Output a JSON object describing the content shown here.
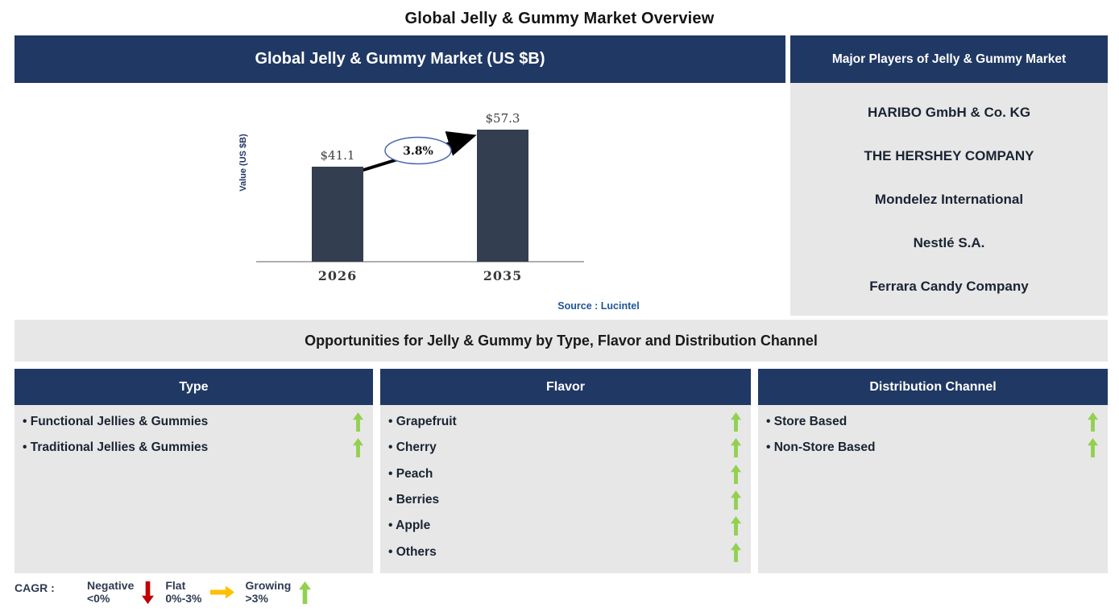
{
  "page": {
    "title": "Global Jelly & Gummy Market Overview"
  },
  "market_panel": {
    "header": "Global Jelly & Gummy Market (US $B)",
    "source": "Source : Lucintel"
  },
  "chart_data": {
    "type": "bar",
    "title": "Global Jelly & Gummy Market (US $B)",
    "categories": [
      "2026",
      "2035"
    ],
    "values": [
      41.1,
      57.3
    ],
    "bar_labels": [
      "$41.1",
      "$57.3"
    ],
    "cagr": "3.8%",
    "ylabel": "Value (US $B)",
    "xlabel": "",
    "ylim": [
      0,
      60
    ],
    "grid": false,
    "legend_position": "none",
    "bar_color": "#333F50",
    "annotation": "3.8% CAGR arrow from 2026 bar to 2035 bar"
  },
  "players": {
    "header": "Major Players of Jelly & Gummy Market",
    "companies": [
      "HARIBO GmbH & Co. KG",
      "THE HERSHEY COMPANY",
      "Mondelez International",
      "Nestlé S.A.",
      "Ferrara Candy Company"
    ]
  },
  "opportunities": {
    "title": "Opportunities for Jelly & Gummy by Type, Flavor and Distribution Channel",
    "columns": [
      {
        "header": "Type",
        "items": [
          {
            "label": "Functional Jellies & Gummies",
            "trend": "growing"
          },
          {
            "label": "Traditional Jellies & Gummies",
            "trend": "growing"
          }
        ]
      },
      {
        "header": "Flavor",
        "items": [
          {
            "label": "Grapefruit",
            "trend": "growing"
          },
          {
            "label": "Cherry",
            "trend": "growing"
          },
          {
            "label": "Peach",
            "trend": "growing"
          },
          {
            "label": "Berries",
            "trend": "growing"
          },
          {
            "label": "Apple",
            "trend": "growing"
          },
          {
            "label": "Others",
            "trend": "growing"
          }
        ]
      },
      {
        "header": "Distribution Channel",
        "items": [
          {
            "label": "Store Based",
            "trend": "growing"
          },
          {
            "label": "Non-Store Based",
            "trend": "growing"
          }
        ]
      }
    ]
  },
  "cagr_legend": {
    "label": "CAGR :",
    "entries": [
      {
        "name": "Negative",
        "range": "<0%",
        "icon": "down-arrow-icon",
        "color": "#C00000"
      },
      {
        "name": "Flat",
        "range": "0%-3%",
        "icon": "right-arrow-icon",
        "color": "#FFC000"
      },
      {
        "name": "Growing",
        "range": ">3%",
        "icon": "up-arrow-icon",
        "color": "#92D050"
      }
    ]
  },
  "colors": {
    "navy_header": "#203864",
    "panel_gray": "#E7E7E7",
    "bar": "#333F50",
    "growing_green": "#92D050",
    "negative_red": "#C00000",
    "flat_yellow": "#FFC000",
    "source_blue": "#1F5597",
    "item_text": "#1A2433"
  }
}
